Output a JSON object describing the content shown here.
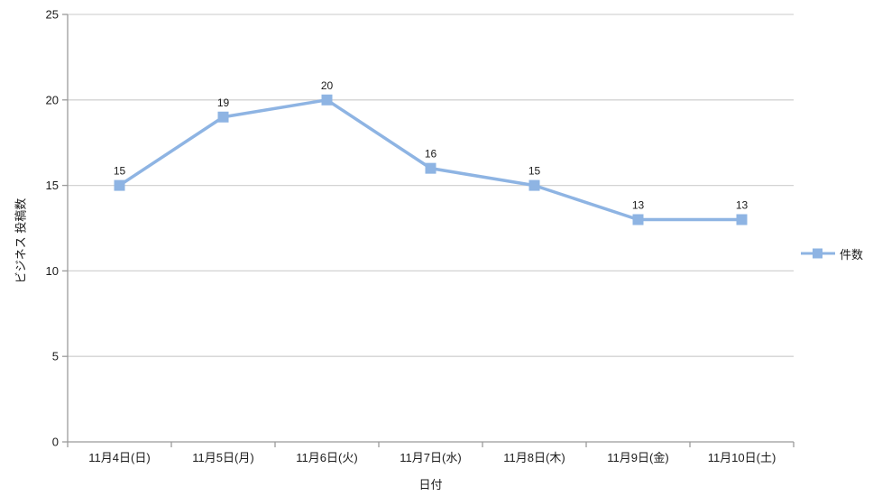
{
  "chart_data": {
    "type": "line",
    "categories": [
      "11月4日(日)",
      "11月5日(月)",
      "11月6日(火)",
      "11月7日(水)",
      "11月8日(木)",
      "11月9日(金)",
      "11月10日(土)"
    ],
    "series": [
      {
        "name": "件数",
        "values": [
          15,
          19,
          20,
          16,
          15,
          13,
          13
        ]
      }
    ],
    "data_labels": [
      15,
      19,
      20,
      16,
      15,
      13,
      13
    ],
    "xlabel": "日付",
    "ylabel": "ビジネス 投稿数",
    "ylim": [
      0,
      25
    ],
    "yticks": [
      0,
      5,
      10,
      15,
      20,
      25
    ],
    "grid": true,
    "legend_position": "right",
    "colors": {
      "series_line": "#8EB4E3",
      "marker_fill": "#8EB4E3",
      "gridline": "#D3D3D3",
      "axis_line": "#9B9B9B",
      "label_text": "#1a1a1a",
      "background": "#FFFFFF"
    }
  }
}
